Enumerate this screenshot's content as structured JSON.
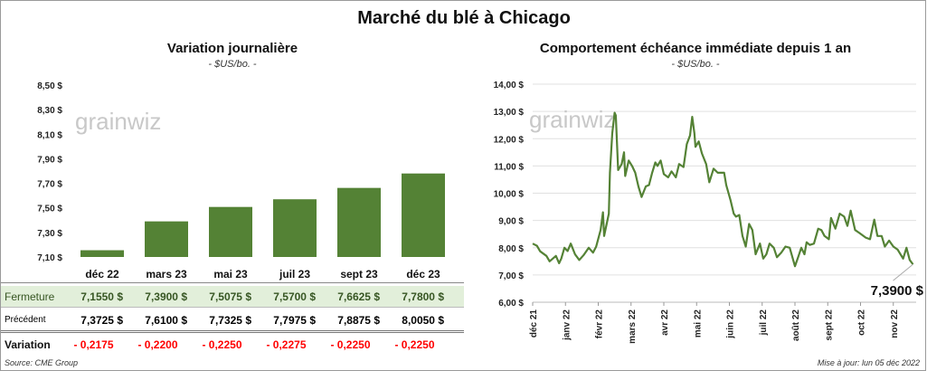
{
  "title": "Marché du blé à Chicago",
  "watermark": "grainwiz",
  "source": "Source: CME Group",
  "updated": "Mise à jour: lun 05 déc 2022",
  "colors": {
    "bar": "#548235",
    "line": "#548235",
    "negative": "#ff0000",
    "row_highlight": "#e2efda"
  },
  "chart_data": [
    {
      "type": "bar",
      "title": "Variation journalière",
      "subtitle": "- $US/bo. -",
      "categories": [
        "déc 22",
        "mars 23",
        "mai 23",
        "juil 23",
        "sept 23",
        "déc 23"
      ],
      "values": [
        7.155,
        7.39,
        7.5075,
        7.57,
        7.6625,
        7.78
      ],
      "ylim": [
        7.1,
        8.5
      ],
      "yticks": [
        "7,10 $",
        "7,30 $",
        "7,50 $",
        "7,70 $",
        "7,90 $",
        "8,10 $",
        "8,30 $",
        "8,50 $"
      ],
      "grid": false
    },
    {
      "type": "line",
      "title": "Comportement  échéance immédiate depuis 1 an",
      "subtitle": "- $US/bo. -",
      "ylim": [
        6,
        14
      ],
      "yticks": [
        "6,00 $",
        "7,00 $",
        "8,00 $",
        "9,00 $",
        "10,00 $",
        "11,00 $",
        "12,00 $",
        "13,00 $",
        "14,00 $"
      ],
      "xticks": [
        "déc 21",
        "janv 22",
        "févr 22",
        "mars 22",
        "avr 22",
        "mai 22",
        "juin 22",
        "juil 22",
        "août 22",
        "sept 22",
        "oct 22",
        "nov 22"
      ],
      "grid": true,
      "last_label": "7,3900 $",
      "points": [
        [
          "2021-12-01",
          8.15
        ],
        [
          "2021-12-05",
          8.07
        ],
        [
          "2021-12-08",
          7.87
        ],
        [
          "2021-12-14",
          7.7
        ],
        [
          "2021-12-17",
          7.5
        ],
        [
          "2021-12-23",
          7.7
        ],
        [
          "2021-12-26",
          7.43
        ],
        [
          "2021-12-28",
          7.6
        ],
        [
          "2021-12-31",
          8.0
        ],
        [
          "2022-01-03",
          7.88
        ],
        [
          "2022-01-06",
          8.15
        ],
        [
          "2022-01-10",
          7.76
        ],
        [
          "2022-01-14",
          7.55
        ],
        [
          "2022-01-18",
          7.72
        ],
        [
          "2022-01-23",
          8.0
        ],
        [
          "2022-01-27",
          7.82
        ],
        [
          "2022-01-30",
          8.04
        ],
        [
          "2022-02-03",
          8.65
        ],
        [
          "2022-02-05",
          9.3
        ],
        [
          "2022-02-06",
          8.43
        ],
        [
          "2022-02-10",
          9.25
        ],
        [
          "2022-02-11",
          10.75
        ],
        [
          "2022-02-13",
          12.2
        ],
        [
          "2022-02-15",
          12.95
        ],
        [
          "2022-02-16",
          12.85
        ],
        [
          "2022-02-18",
          10.85
        ],
        [
          "2022-02-21",
          11.07
        ],
        [
          "2022-02-23",
          11.5
        ],
        [
          "2022-02-24",
          10.63
        ],
        [
          "2022-02-27",
          11.2
        ],
        [
          "2022-03-02",
          11.0
        ],
        [
          "2022-03-05",
          10.75
        ],
        [
          "2022-03-08",
          10.25
        ],
        [
          "2022-03-11",
          9.86
        ],
        [
          "2022-03-15",
          10.25
        ],
        [
          "2022-03-18",
          10.3
        ],
        [
          "2022-03-21",
          10.75
        ],
        [
          "2022-03-24",
          11.13
        ],
        [
          "2022-03-26",
          11.0
        ],
        [
          "2022-03-29",
          11.2
        ],
        [
          "2022-04-01",
          10.7
        ],
        [
          "2022-04-05",
          10.58
        ],
        [
          "2022-04-08",
          10.8
        ],
        [
          "2022-04-12",
          10.58
        ],
        [
          "2022-04-15",
          11.07
        ],
        [
          "2022-04-19",
          10.96
        ],
        [
          "2022-04-22",
          11.8
        ],
        [
          "2022-04-25",
          12.12
        ],
        [
          "2022-04-27",
          12.8
        ],
        [
          "2022-04-29",
          12.2
        ],
        [
          "2022-04-30",
          11.7
        ],
        [
          "2022-05-03",
          11.9
        ],
        [
          "2022-05-06",
          11.46
        ],
        [
          "2022-05-10",
          11.07
        ],
        [
          "2022-05-13",
          10.4
        ],
        [
          "2022-05-17",
          10.9
        ],
        [
          "2022-05-21",
          10.75
        ],
        [
          "2022-05-27",
          10.75
        ],
        [
          "2022-05-29",
          10.3
        ],
        [
          "2022-06-02",
          9.75
        ],
        [
          "2022-06-05",
          9.25
        ],
        [
          "2022-06-07",
          9.14
        ],
        [
          "2022-06-10",
          9.2
        ],
        [
          "2022-06-13",
          8.43
        ],
        [
          "2022-06-16",
          8.04
        ],
        [
          "2022-06-19",
          8.87
        ],
        [
          "2022-06-22",
          8.65
        ],
        [
          "2022-06-25",
          7.76
        ],
        [
          "2022-06-29",
          8.15
        ],
        [
          "2022-07-02",
          7.6
        ],
        [
          "2022-07-05",
          7.76
        ],
        [
          "2022-07-08",
          8.15
        ],
        [
          "2022-07-12",
          8.0
        ],
        [
          "2022-07-15",
          7.65
        ],
        [
          "2022-07-19",
          7.82
        ],
        [
          "2022-07-23",
          8.04
        ],
        [
          "2022-07-27",
          8.0
        ],
        [
          "2022-08-01",
          7.32
        ],
        [
          "2022-08-04",
          7.65
        ],
        [
          "2022-08-07",
          8.0
        ],
        [
          "2022-08-10",
          7.76
        ],
        [
          "2022-08-12",
          8.2
        ],
        [
          "2022-08-15",
          8.1
        ],
        [
          "2022-08-19",
          8.15
        ],
        [
          "2022-08-23",
          8.7
        ],
        [
          "2022-08-26",
          8.65
        ],
        [
          "2022-08-29",
          8.43
        ],
        [
          "2022-09-02",
          8.31
        ],
        [
          "2022-09-04",
          9.09
        ],
        [
          "2022-09-08",
          8.7
        ],
        [
          "2022-09-12",
          9.25
        ],
        [
          "2022-09-16",
          9.14
        ],
        [
          "2022-09-19",
          8.8
        ],
        [
          "2022-09-22",
          9.36
        ],
        [
          "2022-09-26",
          8.65
        ],
        [
          "2022-09-30",
          8.54
        ],
        [
          "2022-10-06",
          8.37
        ],
        [
          "2022-10-10",
          8.31
        ],
        [
          "2022-10-14",
          9.03
        ],
        [
          "2022-10-17",
          8.43
        ],
        [
          "2022-10-21",
          8.43
        ],
        [
          "2022-10-24",
          8.04
        ],
        [
          "2022-10-28",
          8.26
        ],
        [
          "2022-11-01",
          8.04
        ],
        [
          "2022-11-05",
          7.93
        ],
        [
          "2022-11-10",
          7.6
        ],
        [
          "2022-11-13",
          8.0
        ],
        [
          "2022-11-16",
          7.55
        ],
        [
          "2022-11-19",
          7.39
        ]
      ]
    }
  ],
  "table": {
    "rows": [
      {
        "label": "Fermeture",
        "values": [
          "7,1550  $",
          "7,3900  $",
          "7,5075  $",
          "7,5700  $",
          "7,6625  $",
          "7,7800  $"
        ]
      },
      {
        "label": "Précédent",
        "values": [
          "7,3725  $",
          "7,6100  $",
          "7,7325  $",
          "7,7975  $",
          "7,8875  $",
          "8,0050  $"
        ]
      },
      {
        "label": "Variation",
        "values": [
          "- 0,2175",
          "- 0,2200",
          "- 0,2250",
          "- 0,2275",
          "- 0,2250",
          "- 0,2250"
        ]
      }
    ]
  }
}
